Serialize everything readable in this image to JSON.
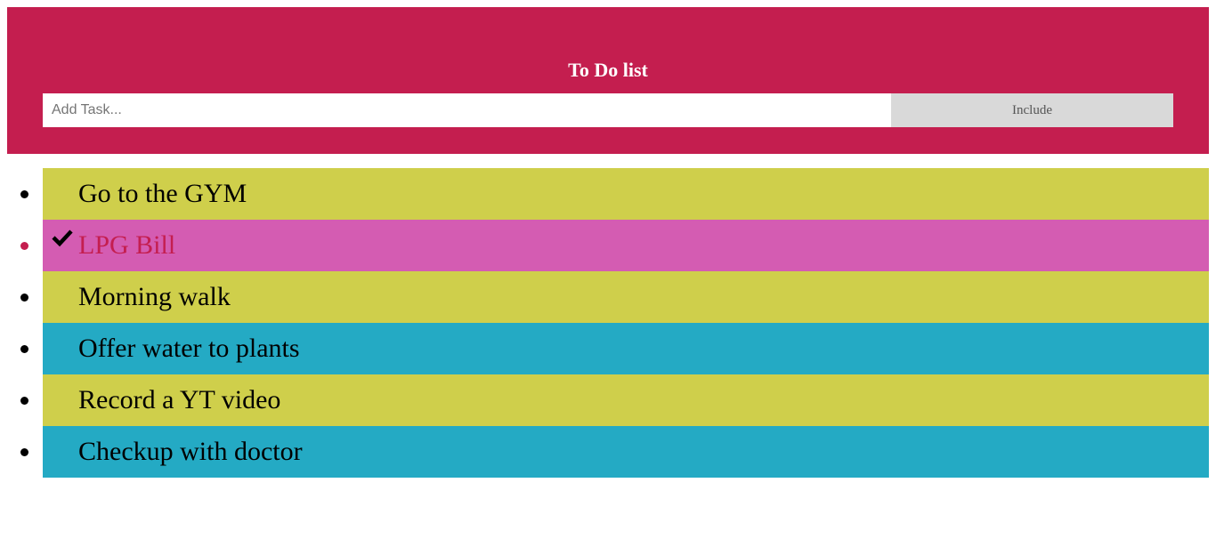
{
  "header": {
    "title": "To Do list",
    "input_placeholder": "Add Task...",
    "input_value": "",
    "button_label": "Include"
  },
  "colors": {
    "header_bg": "#c41e4f",
    "item_yellow": "#cfcf4b",
    "item_blue": "#24aac4",
    "item_checked": "#d45cb2",
    "checked_text": "#c41e4f"
  },
  "tasks": [
    {
      "text": "Go to the GYM",
      "checked": false,
      "color": "#cfcf4b"
    },
    {
      "text": "LPG Bill",
      "checked": true,
      "color": "#d45cb2"
    },
    {
      "text": "Morning walk",
      "checked": false,
      "color": "#cfcf4b"
    },
    {
      "text": "Offer water to plants",
      "checked": false,
      "color": "#24aac4"
    },
    {
      "text": "Record a YT video",
      "checked": false,
      "color": "#cfcf4b"
    },
    {
      "text": "Checkup with doctor",
      "checked": false,
      "color": "#24aac4"
    }
  ]
}
